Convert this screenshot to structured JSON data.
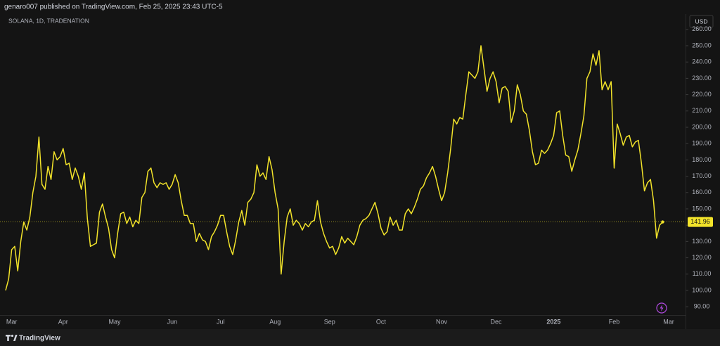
{
  "header": "genaro007 published on TradingView.com, Feb 25, 2025 23:43 UTC-5",
  "footer": "TradingView",
  "chart_data": {
    "type": "line",
    "title": "SOLANA, 1D, TRADENATION",
    "currency": "USD",
    "color": "#f2e32a",
    "grid": false,
    "ylim": [
      84.9,
      262.5
    ],
    "yticks": [
      {
        "value": 90,
        "label": "90.00"
      },
      {
        "value": 100,
        "label": "100.00"
      },
      {
        "value": 110,
        "label": "110.00"
      },
      {
        "value": 120,
        "label": "120.00"
      },
      {
        "value": 130,
        "label": "130.00"
      },
      {
        "value": 140,
        "label": "140.00"
      },
      {
        "value": 150,
        "label": "150.00"
      },
      {
        "value": 160,
        "label": "160.00"
      },
      {
        "value": 170,
        "label": "170.00"
      },
      {
        "value": 180,
        "label": "180.00"
      },
      {
        "value": 190,
        "label": "190.00"
      },
      {
        "value": 200,
        "label": "200.00"
      },
      {
        "value": 210,
        "label": "210.00"
      },
      {
        "value": 220,
        "label": "220.00"
      },
      {
        "value": 230,
        "label": "230.00"
      },
      {
        "value": 240,
        "label": "240.00"
      },
      {
        "value": 250,
        "label": "250.00"
      },
      {
        "value": 260,
        "label": "260.00"
      }
    ],
    "categories": [
      null,
      null,
      "Mar",
      null,
      null,
      null,
      null,
      null,
      null,
      null,
      null,
      null,
      null,
      null,
      null,
      null,
      null,
      null,
      null,
      "Apr",
      null,
      null,
      null,
      null,
      null,
      null,
      null,
      null,
      null,
      null,
      null,
      null,
      null,
      null,
      null,
      null,
      "May",
      null,
      null,
      null,
      null,
      null,
      null,
      null,
      null,
      null,
      null,
      null,
      null,
      null,
      null,
      null,
      null,
      null,
      null,
      "Jun",
      null,
      null,
      null,
      null,
      null,
      null,
      null,
      null,
      null,
      null,
      null,
      null,
      null,
      null,
      null,
      "Jul",
      null,
      null,
      null,
      null,
      null,
      null,
      null,
      null,
      null,
      null,
      null,
      null,
      null,
      null,
      null,
      null,
      null,
      "Aug",
      null,
      null,
      null,
      null,
      null,
      null,
      null,
      null,
      null,
      null,
      null,
      null,
      null,
      null,
      null,
      null,
      null,
      "Sep",
      null,
      null,
      null,
      null,
      null,
      null,
      null,
      null,
      null,
      null,
      null,
      null,
      null,
      null,
      null,
      null,
      "Oct",
      null,
      null,
      null,
      null,
      null,
      null,
      null,
      null,
      null,
      null,
      null,
      null,
      null,
      null,
      null,
      null,
      null,
      null,
      null,
      "Nov",
      null,
      null,
      null,
      null,
      null,
      null,
      null,
      null,
      null,
      null,
      null,
      null,
      null,
      null,
      null,
      null,
      null,
      "Dec",
      null,
      null,
      null,
      null,
      null,
      null,
      null,
      null,
      null,
      null,
      null,
      null,
      null,
      null,
      null,
      null,
      null,
      null,
      "2025",
      null,
      null,
      null,
      null,
      null,
      null,
      null,
      null,
      null,
      null,
      null,
      null,
      null,
      null,
      null,
      null,
      null,
      null,
      null,
      "Feb",
      null,
      null,
      null,
      null,
      null,
      null,
      null,
      null,
      null,
      null,
      null,
      null,
      null,
      null,
      null,
      null,
      null,
      "Mar"
    ],
    "values": [
      100,
      107,
      125,
      127,
      112,
      130,
      142,
      137,
      145,
      160,
      170,
      194,
      165,
      162,
      176,
      168,
      185,
      180,
      182,
      187,
      177,
      178,
      168,
      175,
      170,
      162,
      172,
      144,
      127,
      128,
      129,
      148,
      153,
      145,
      138,
      125,
      120,
      135,
      147,
      148,
      141,
      145,
      139,
      143,
      141,
      157,
      160,
      173,
      175,
      166,
      163,
      166,
      165,
      166,
      162,
      165,
      171,
      166,
      155,
      146,
      146,
      141,
      141,
      130,
      135,
      131,
      130,
      125,
      133,
      136,
      140,
      146,
      146,
      136,
      127,
      122,
      131,
      142,
      149,
      140,
      154,
      156,
      160,
      177,
      170,
      172,
      168,
      182,
      174,
      160,
      150,
      110,
      130,
      145,
      150,
      140,
      143,
      141,
      137,
      141,
      139,
      142,
      143,
      155,
      142,
      135,
      130,
      126,
      127,
      122,
      126,
      133,
      129,
      132,
      130,
      128,
      133,
      140,
      143,
      144,
      146,
      150,
      154,
      147,
      138,
      134,
      136,
      145,
      140,
      143,
      137,
      137,
      147,
      150,
      147,
      151,
      156,
      162,
      164,
      169,
      172,
      176,
      170,
      162,
      155,
      160,
      172,
      187,
      205,
      202,
      206,
      205,
      220,
      234,
      232,
      230,
      234,
      250,
      236,
      222,
      230,
      234,
      228,
      215,
      224,
      225,
      222,
      203,
      210,
      226,
      220,
      210,
      208,
      198,
      185,
      177,
      178,
      186,
      184,
      186,
      190,
      195,
      209,
      210,
      195,
      183,
      182,
      173,
      180,
      186,
      196,
      207,
      230,
      234,
      245,
      238,
      247,
      223,
      228,
      223,
      228,
      175,
      202,
      196,
      189,
      194,
      195,
      188,
      191,
      192,
      178,
      161,
      166,
      168,
      155,
      132,
      140,
      141.96,
      null,
      null
    ]
  }
}
